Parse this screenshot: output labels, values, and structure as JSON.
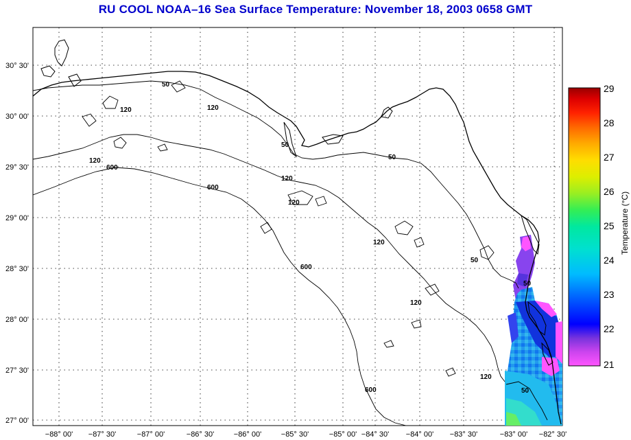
{
  "title": "RU COOL  NOAA–16  Sea Surface Temperature:  November 18, 2003 0658 GMT",
  "map": {
    "lat_labels": [
      "30° 30'",
      "30° 00'",
      "29° 30'",
      "29° 00'",
      "28° 30'",
      "28° 00'",
      "27° 30'",
      "27° 00'"
    ],
    "lon_labels": [
      "−88° 00'",
      "−87° 30'",
      "−87° 00'",
      "−86° 30'",
      "−86° 00'",
      "−85° 30'",
      "−85° 00'",
      "−84° 30'",
      "−84° 00'",
      "−83° 30'",
      "−83° 00'",
      "−82° 30'"
    ],
    "bathymetry_labels": [
      "50",
      "120",
      "120",
      "120",
      "600",
      "50",
      "120",
      "600",
      "120",
      "120",
      "50",
      "600",
      "120",
      "50",
      "50",
      "120",
      "600",
      "50"
    ]
  },
  "colorbar": {
    "label": "Temperature (°C)",
    "ticks": [
      "29",
      "28",
      "27",
      "26",
      "25",
      "24",
      "23",
      "22",
      "21"
    ],
    "min": 21,
    "max": 29,
    "colors": [
      "#ff55ff",
      "#cc44ee",
      "#7733dd",
      "#0000ff",
      "#0066ff",
      "#00bbff",
      "#00e0d0",
      "#00e8a0",
      "#33ee55",
      "#99ee22",
      "#ddee00",
      "#ffdd00",
      "#ffaa00",
      "#ff6600",
      "#ff2200",
      "#dd0000",
      "#990000"
    ]
  }
}
